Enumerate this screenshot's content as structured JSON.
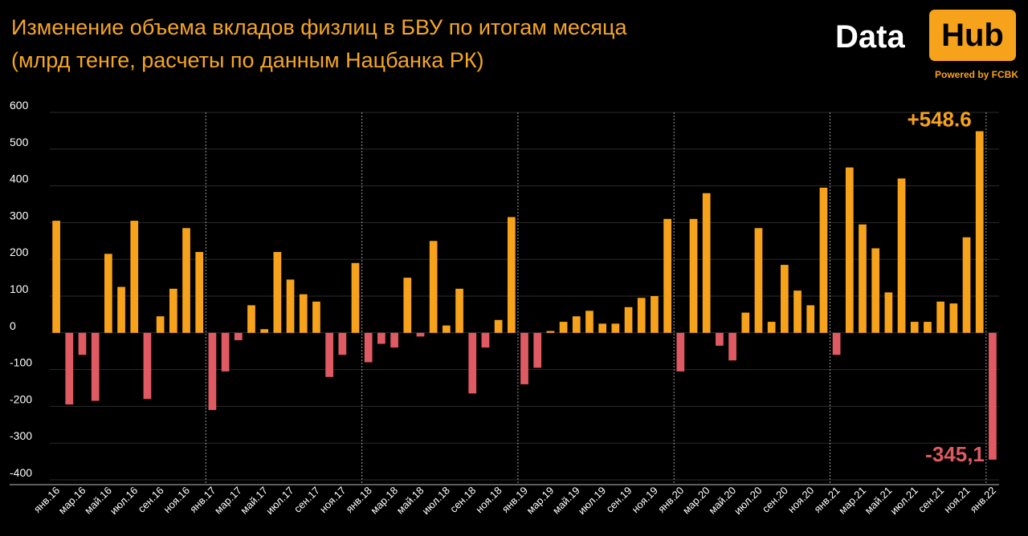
{
  "title_line1": "Изменение объема вкладов физлиц в БВУ по итогам месяца",
  "title_line2": "(млрд тенге, расчеты по данным Нацбанка РК)",
  "logo": {
    "data_text": "Data",
    "hub_text": "Hub",
    "powered_text": "Powered by FCBK"
  },
  "colors": {
    "positive": "#f7a21b",
    "negative": "#e05a63",
    "background": "#000000",
    "text": "#ffffff",
    "title": "#f5a623"
  },
  "chart_data": {
    "type": "bar",
    "title": "Изменение объема вкладов физлиц в БВУ по итогам месяца",
    "subtitle": "(млрд тенге, расчеты по данным Нацбанка РК)",
    "xlabel": "",
    "ylabel": "",
    "ylim": [
      -400,
      600
    ],
    "yticks": [
      600,
      500,
      400,
      300,
      200,
      100,
      0,
      -100,
      -200,
      -300,
      -400
    ],
    "grid": true,
    "legend": "none",
    "categories": [
      "янв.16",
      "фев.16",
      "мар.16",
      "апр.16",
      "май.16",
      "июн.16",
      "июл.16",
      "авг.16",
      "сен.16",
      "окт.16",
      "ноя.16",
      "дек.16",
      "янв.17",
      "фев.17",
      "мар.17",
      "апр.17",
      "май.17",
      "июн.17",
      "июл.17",
      "авг.17",
      "сен.17",
      "окт.17",
      "ноя.17",
      "дек.17",
      "янв.18",
      "фев.18",
      "мар.18",
      "апр.18",
      "май.18",
      "июн.18",
      "июл.18",
      "авг.18",
      "сен.18",
      "окт.18",
      "ноя.18",
      "дек.18",
      "янв.19",
      "фев.19",
      "мар.19",
      "апр.19",
      "май.19",
      "июн.19",
      "июл.19",
      "авг.19",
      "сен.19",
      "окт.19",
      "ноя.19",
      "дек.19",
      "янв.20",
      "фев.20",
      "мар.20",
      "апр.20",
      "май.20",
      "июн.20",
      "июл.20",
      "авг.20",
      "сен.20",
      "окт.20",
      "ноя.20",
      "дек.20",
      "янв.21",
      "фев.21",
      "мар.21",
      "апр.21",
      "май.21",
      "июн.21",
      "июл.21",
      "авг.21",
      "сен.21",
      "окт.21",
      "ноя.21",
      "дек.21",
      "янв.22"
    ],
    "tick_labels_shown": [
      "янв.16",
      "мар.16",
      "май.16",
      "июл.16",
      "сен.16",
      "ноя.16",
      "янв.17",
      "мар.17",
      "май.17",
      "июл.17",
      "сен.17",
      "ноя.17",
      "янв.18",
      "мар.18",
      "май.18",
      "июл.18",
      "сен.18",
      "ноя.18",
      "янв.19",
      "мар.19",
      "май.19",
      "июл.19",
      "сен.19",
      "ноя.19",
      "янв.20",
      "мар.20",
      "май.20",
      "июл.20",
      "сен.20",
      "ноя.20",
      "янв.21",
      "мар.21",
      "май.21",
      "июл.21",
      "сен.21",
      "ноя.21",
      "янв.22"
    ],
    "values": [
      305,
      -195,
      -60,
      -185,
      215,
      125,
      305,
      -180,
      45,
      120,
      285,
      220,
      -210,
      -105,
      -20,
      75,
      10,
      220,
      145,
      105,
      85,
      -120,
      -60,
      190,
      -80,
      -30,
      -40,
      150,
      -10,
      250,
      20,
      120,
      -165,
      -40,
      35,
      315,
      -140,
      -95,
      5,
      30,
      45,
      60,
      25,
      25,
      70,
      95,
      100,
      310,
      -105,
      310,
      380,
      -35,
      -75,
      55,
      285,
      30,
      185,
      115,
      75,
      395,
      -60,
      450,
      295,
      230,
      110,
      420,
      30,
      30,
      85,
      80,
      260,
      548.6,
      -345.1
    ],
    "annotations": [
      {
        "category": "дек.21",
        "text": "+548.6"
      },
      {
        "category": "янв.22",
        "text": "-345,1"
      }
    ]
  }
}
